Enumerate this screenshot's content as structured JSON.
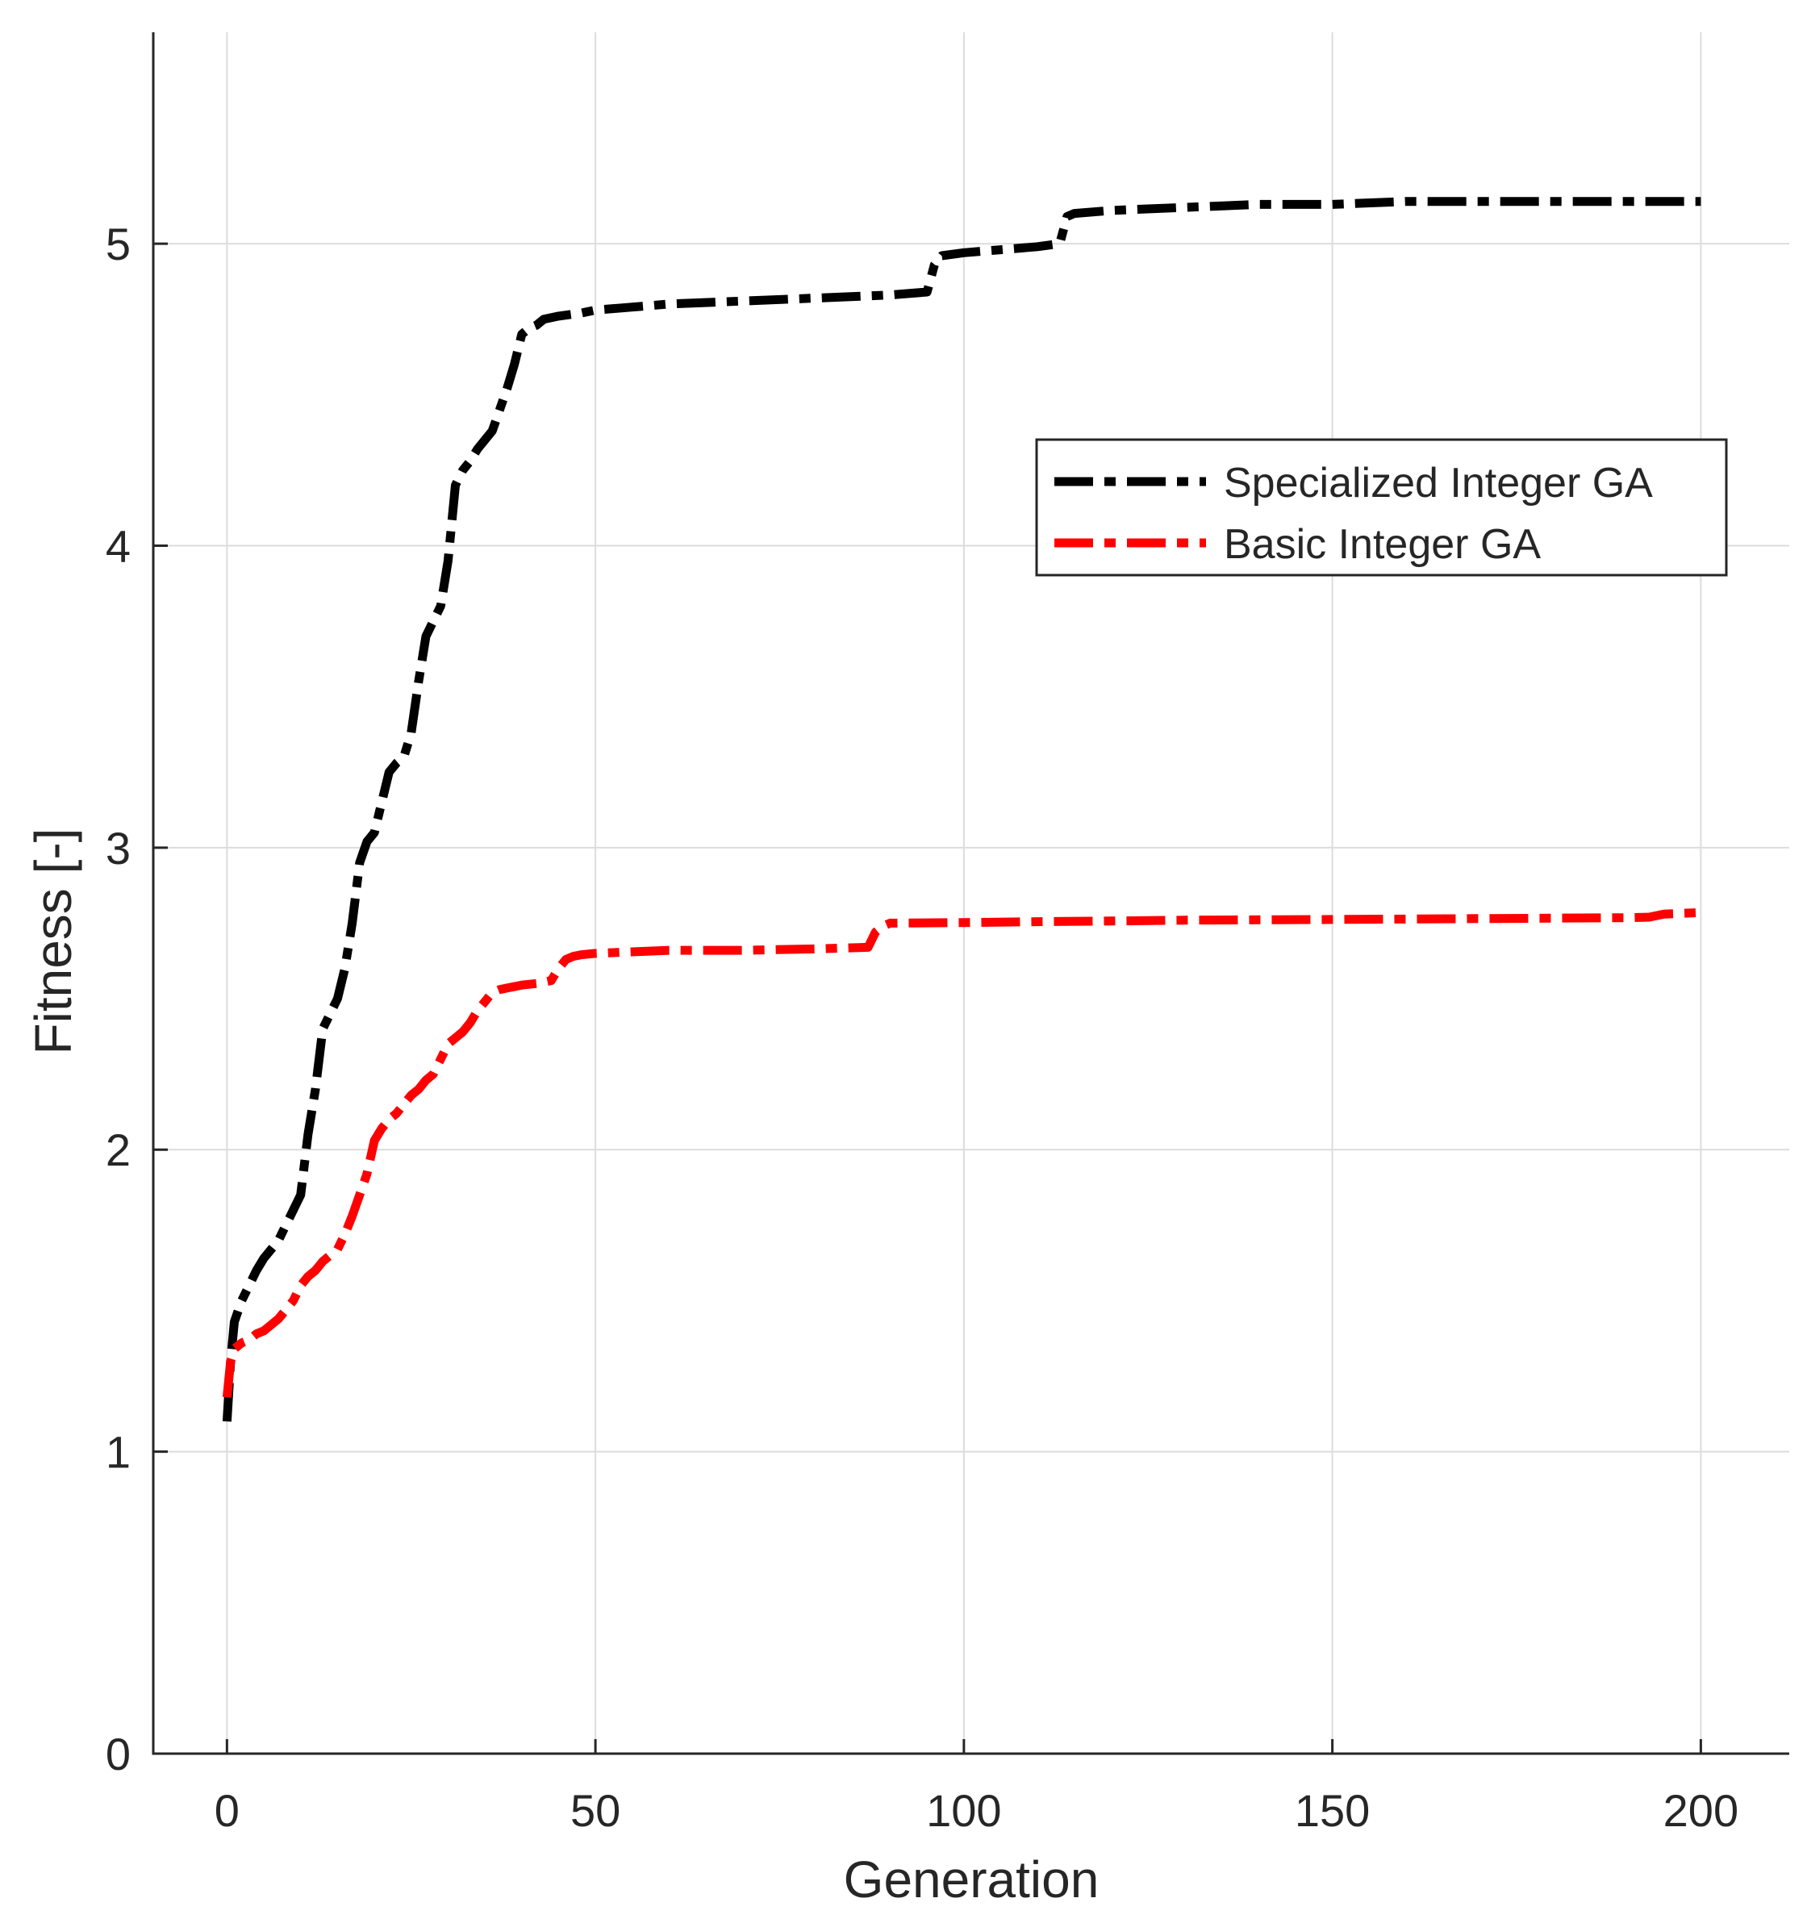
{
  "chart_data": {
    "type": "line",
    "xlabel": "Generation",
    "ylabel": "Fitness [-]",
    "xlim": [
      -10,
      212
    ],
    "ylim": [
      0,
      5.7
    ],
    "xticks": [
      0,
      50,
      100,
      150,
      200
    ],
    "yticks": [
      0,
      1,
      2,
      3,
      4,
      5
    ],
    "grid": true,
    "legend_position": "top-right",
    "series": [
      {
        "name": "Specialized Integer GA",
        "color": "#000000",
        "dash": "long-dash-dot",
        "x": [
          0,
          0.5,
          1,
          2,
          3,
          4,
          5,
          6,
          7,
          8,
          9,
          10,
          11,
          12,
          13,
          14,
          15,
          16,
          17,
          18,
          19,
          20,
          21,
          22,
          23,
          24,
          25,
          26,
          27,
          28,
          29,
          30,
          31,
          32,
          33,
          34,
          35,
          36,
          37,
          38,
          39,
          40,
          41,
          42,
          43,
          45,
          48,
          50,
          55,
          60,
          70,
          80,
          90,
          95,
          96,
          97,
          100,
          105,
          110,
          113,
          114,
          115,
          120,
          130,
          140,
          150,
          160,
          170,
          180,
          190,
          200
        ],
        "y": [
          1.1,
          1.3,
          1.43,
          1.5,
          1.55,
          1.6,
          1.64,
          1.67,
          1.7,
          1.75,
          1.8,
          1.85,
          2.05,
          2.2,
          2.4,
          2.45,
          2.5,
          2.6,
          2.75,
          2.95,
          3.02,
          3.05,
          3.15,
          3.25,
          3.28,
          3.3,
          3.38,
          3.55,
          3.7,
          3.75,
          3.8,
          3.95,
          4.2,
          4.25,
          4.28,
          4.32,
          4.35,
          4.38,
          4.45,
          4.52,
          4.6,
          4.7,
          4.72,
          4.73,
          4.75,
          4.76,
          4.77,
          4.78,
          4.79,
          4.8,
          4.81,
          4.82,
          4.83,
          4.84,
          4.93,
          4.96,
          4.97,
          4.98,
          4.99,
          5.0,
          5.09,
          5.1,
          5.11,
          5.12,
          5.13,
          5.13,
          5.14,
          5.14,
          5.14,
          5.14,
          5.14
        ]
      },
      {
        "name": "Basic Integer GA",
        "color": "#ff0000",
        "dash": "long-dash-dot",
        "x": [
          0,
          0.5,
          1,
          2,
          3,
          4,
          5,
          6,
          7,
          8,
          9,
          10,
          11,
          12,
          13,
          14,
          15,
          16,
          17,
          18,
          19,
          20,
          21,
          22,
          23,
          24,
          25,
          26,
          27,
          28,
          29,
          30,
          31,
          32,
          33,
          34,
          35,
          36,
          37,
          38,
          39,
          40,
          42,
          44,
          45,
          46,
          47,
          48,
          50,
          55,
          60,
          70,
          80,
          87,
          88,
          89,
          90,
          100,
          110,
          120,
          130,
          150,
          170,
          190,
          193,
          195,
          200
        ],
        "y": [
          1.18,
          1.3,
          1.34,
          1.36,
          1.37,
          1.39,
          1.4,
          1.42,
          1.44,
          1.47,
          1.5,
          1.55,
          1.58,
          1.6,
          1.63,
          1.65,
          1.67,
          1.72,
          1.78,
          1.85,
          1.92,
          2.03,
          2.07,
          2.1,
          2.12,
          2.15,
          2.18,
          2.2,
          2.23,
          2.25,
          2.3,
          2.35,
          2.37,
          2.39,
          2.42,
          2.46,
          2.49,
          2.52,
          2.53,
          2.535,
          2.54,
          2.545,
          2.55,
          2.56,
          2.6,
          2.63,
          2.64,
          2.645,
          2.65,
          2.655,
          2.66,
          2.66,
          2.665,
          2.67,
          2.72,
          2.74,
          2.75,
          2.752,
          2.755,
          2.757,
          2.76,
          2.762,
          2.765,
          2.768,
          2.77,
          2.78,
          2.785
        ]
      }
    ]
  }
}
